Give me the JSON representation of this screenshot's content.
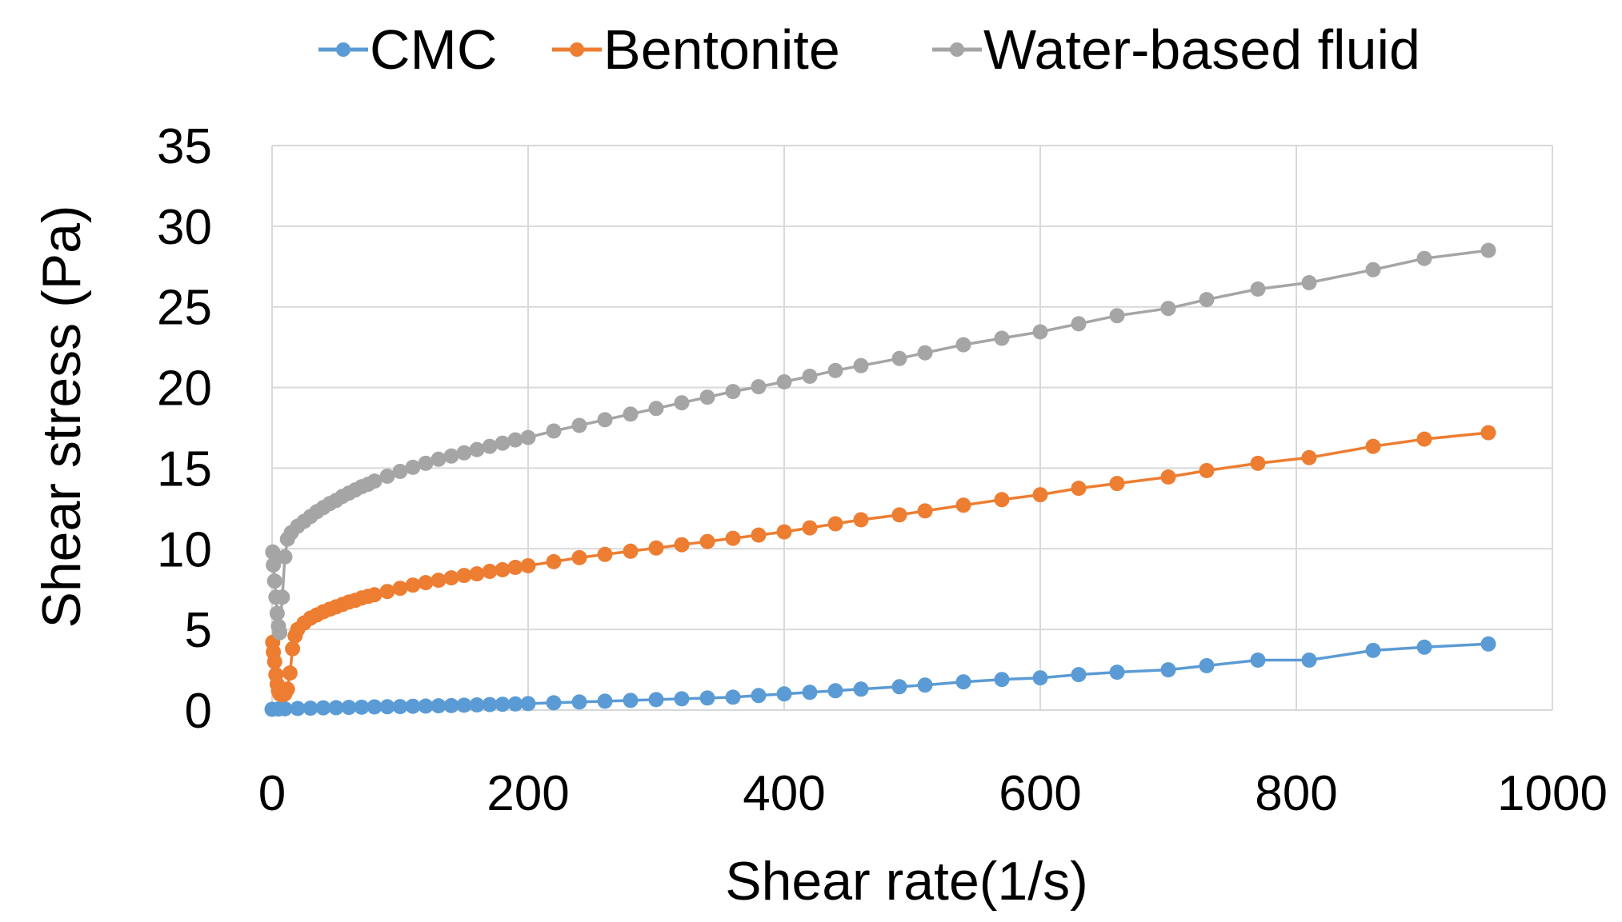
{
  "chart_data": {
    "type": "line",
    "title": "",
    "xlabel": "Shear rate(1/s)",
    "ylabel": "Shear stress (Pa)",
    "xlim": [
      0,
      1000
    ],
    "ylim": [
      0,
      35
    ],
    "x_ticks": [
      0,
      200,
      400,
      600,
      800,
      1000
    ],
    "y_ticks": [
      0,
      5,
      10,
      15,
      20,
      25,
      30,
      35
    ],
    "grid": true,
    "legend_position": "top",
    "series": [
      {
        "name": "CMC",
        "color": "#5B9BD5",
        "x": [
          0,
          5,
          10,
          20,
          30,
          40,
          50,
          60,
          70,
          80,
          90,
          100,
          110,
          120,
          130,
          140,
          150,
          160,
          170,
          180,
          190,
          200,
          220,
          240,
          260,
          280,
          300,
          320,
          340,
          360,
          380,
          400,
          420,
          440,
          460,
          490,
          510,
          540,
          570,
          600,
          630,
          660,
          700,
          730,
          770,
          810,
          860,
          900,
          950
        ],
        "y": [
          0.05,
          0.07,
          0.08,
          0.1,
          0.12,
          0.14,
          0.15,
          0.17,
          0.18,
          0.2,
          0.21,
          0.22,
          0.24,
          0.25,
          0.27,
          0.28,
          0.3,
          0.32,
          0.34,
          0.36,
          0.38,
          0.4,
          0.45,
          0.5,
          0.55,
          0.6,
          0.65,
          0.7,
          0.75,
          0.8,
          0.9,
          1.0,
          1.1,
          1.2,
          1.3,
          1.45,
          1.55,
          1.75,
          1.9,
          2.0,
          2.2,
          2.35,
          2.5,
          2.75,
          3.1,
          3.1,
          3.7,
          3.9,
          4.1
        ]
      },
      {
        "name": "Bentonite",
        "color": "#ED7D31",
        "x": [
          0.5,
          1,
          2,
          3,
          4,
          5,
          6,
          8,
          10,
          12,
          14,
          16,
          18,
          20,
          25,
          30,
          35,
          40,
          45,
          50,
          55,
          60,
          65,
          70,
          75,
          80,
          90,
          100,
          110,
          120,
          130,
          140,
          150,
          160,
          170,
          180,
          190,
          200,
          220,
          240,
          260,
          280,
          300,
          320,
          340,
          360,
          380,
          400,
          420,
          440,
          460,
          490,
          510,
          540,
          570,
          600,
          630,
          660,
          700,
          730,
          770,
          810,
          860,
          900,
          950
        ],
        "y": [
          4.2,
          3.6,
          3.0,
          2.2,
          1.6,
          1.2,
          1.0,
          0.95,
          1.0,
          1.3,
          2.3,
          3.8,
          4.6,
          5.0,
          5.4,
          5.7,
          5.9,
          6.1,
          6.25,
          6.4,
          6.55,
          6.7,
          6.8,
          6.95,
          7.05,
          7.15,
          7.35,
          7.55,
          7.75,
          7.9,
          8.05,
          8.2,
          8.35,
          8.45,
          8.6,
          8.7,
          8.85,
          8.95,
          9.2,
          9.45,
          9.65,
          9.85,
          10.05,
          10.25,
          10.45,
          10.65,
          10.85,
          11.05,
          11.3,
          11.55,
          11.8,
          12.1,
          12.35,
          12.7,
          13.05,
          13.35,
          13.75,
          14.05,
          14.45,
          14.85,
          15.3,
          15.65,
          16.35,
          16.8,
          17.2
        ]
      },
      {
        "name": "Water-based fluid",
        "color": "#A5A5A5",
        "x": [
          0.5,
          1,
          2,
          3,
          4,
          5,
          6,
          8,
          10,
          12,
          15,
          20,
          25,
          30,
          35,
          40,
          45,
          50,
          55,
          60,
          65,
          70,
          75,
          80,
          90,
          100,
          110,
          120,
          130,
          140,
          150,
          160,
          170,
          180,
          190,
          200,
          220,
          240,
          260,
          280,
          300,
          320,
          340,
          360,
          380,
          400,
          420,
          440,
          460,
          490,
          510,
          540,
          570,
          600,
          630,
          660,
          700,
          730,
          770,
          810,
          860,
          900,
          950
        ],
        "y": [
          9.8,
          9.0,
          8.0,
          7.0,
          6.0,
          5.2,
          4.8,
          7.0,
          9.5,
          10.6,
          11.0,
          11.4,
          11.7,
          12.0,
          12.3,
          12.55,
          12.8,
          13.0,
          13.25,
          13.45,
          13.65,
          13.85,
          14.0,
          14.2,
          14.5,
          14.8,
          15.05,
          15.3,
          15.55,
          15.75,
          15.95,
          16.15,
          16.35,
          16.55,
          16.75,
          16.9,
          17.3,
          17.65,
          18.0,
          18.35,
          18.7,
          19.05,
          19.4,
          19.75,
          20.05,
          20.35,
          20.7,
          21.05,
          21.35,
          21.8,
          22.15,
          22.65,
          23.05,
          23.45,
          23.95,
          24.45,
          24.9,
          25.45,
          26.1,
          26.5,
          27.3,
          28.0,
          28.5
        ]
      }
    ]
  }
}
